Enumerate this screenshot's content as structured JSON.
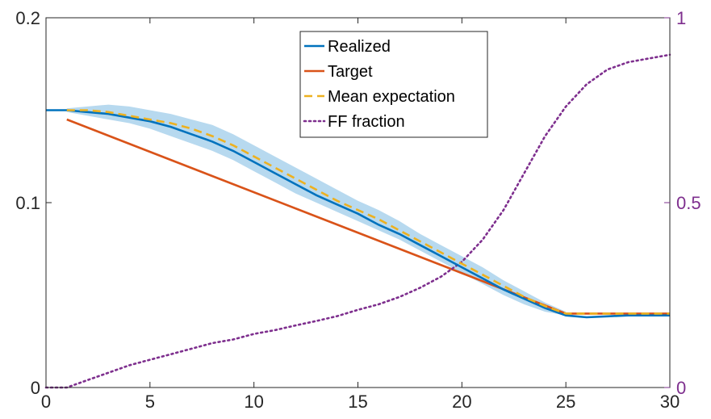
{
  "chart_data": {
    "type": "line",
    "xlim": [
      0,
      30
    ],
    "ylim_left": [
      0,
      0.2
    ],
    "ylim_right": [
      0,
      1
    ],
    "x_ticks": [
      "0",
      "5",
      "10",
      "15",
      "20",
      "25",
      "30"
    ],
    "y_left_ticks": [
      "0",
      "0.1",
      "0.2"
    ],
    "y_right_ticks": [
      "0",
      "0.5",
      "1"
    ],
    "legend_position": "top-center",
    "grid": false,
    "colors": {
      "realized": "#0072BD",
      "target": "#D95319",
      "mean_expectation": "#EDB120",
      "ff_fraction": "#7E2F8E",
      "band": "#B7D9EF"
    },
    "series": [
      {
        "name": "Realized",
        "axis": "left",
        "style": "solid",
        "x": [
          0,
          1,
          2,
          3,
          4,
          5,
          6,
          7,
          8,
          9,
          10,
          11,
          12,
          13,
          14,
          15,
          16,
          17,
          18,
          19,
          20,
          21,
          22,
          23,
          24,
          25,
          26,
          27,
          28,
          29,
          30
        ],
        "y": [
          0.15,
          0.15,
          0.149,
          0.148,
          0.146,
          0.144,
          0.141,
          0.137,
          0.133,
          0.128,
          0.122,
          0.116,
          0.11,
          0.104,
          0.099,
          0.094,
          0.088,
          0.083,
          0.077,
          0.071,
          0.065,
          0.059,
          0.053,
          0.048,
          0.043,
          0.039,
          0.038,
          0.0385,
          0.039,
          0.039,
          0.039
        ]
      },
      {
        "name": "Target",
        "axis": "left",
        "style": "solid",
        "x": [
          1,
          25,
          30
        ],
        "y": [
          0.145,
          0.04,
          0.04
        ]
      },
      {
        "name": "Mean expectation",
        "axis": "left",
        "style": "dashed",
        "x": [
          1,
          2,
          3,
          4,
          5,
          6,
          7,
          8,
          9,
          10,
          11,
          12,
          13,
          14,
          15,
          16,
          17,
          18,
          19,
          20,
          21,
          22,
          23,
          24,
          25,
          26,
          27,
          28,
          29,
          30
        ],
        "y": [
          0.15,
          0.15,
          0.149,
          0.147,
          0.145,
          0.143,
          0.14,
          0.136,
          0.131,
          0.125,
          0.119,
          0.113,
          0.107,
          0.101,
          0.096,
          0.091,
          0.085,
          0.079,
          0.073,
          0.067,
          0.061,
          0.055,
          0.049,
          0.044,
          0.04,
          0.04,
          0.04,
          0.04,
          0.04,
          0.04
        ]
      },
      {
        "name": "FF fraction",
        "axis": "right",
        "style": "dotted",
        "x": [
          0,
          1,
          2,
          3,
          4,
          5,
          6,
          7,
          8,
          9,
          10,
          11,
          12,
          13,
          14,
          15,
          16,
          17,
          18,
          19,
          20,
          21,
          22,
          23,
          24,
          25,
          26,
          27,
          28,
          29,
          30
        ],
        "y": [
          0.0,
          0.0,
          0.02,
          0.04,
          0.06,
          0.075,
          0.09,
          0.105,
          0.12,
          0.13,
          0.145,
          0.155,
          0.168,
          0.18,
          0.193,
          0.21,
          0.225,
          0.245,
          0.27,
          0.3,
          0.34,
          0.4,
          0.48,
          0.58,
          0.68,
          0.76,
          0.82,
          0.86,
          0.88,
          0.89,
          0.9
        ]
      }
    ],
    "band": {
      "axis": "left",
      "x": [
        1,
        2,
        3,
        4,
        5,
        6,
        7,
        8,
        9,
        10,
        11,
        12,
        13,
        14,
        15,
        16,
        17,
        18,
        19,
        20,
        21,
        22,
        23,
        24,
        25
      ],
      "lower": [
        0.149,
        0.147,
        0.145,
        0.143,
        0.14,
        0.136,
        0.132,
        0.128,
        0.123,
        0.117,
        0.111,
        0.105,
        0.1,
        0.095,
        0.09,
        0.085,
        0.08,
        0.074,
        0.068,
        0.062,
        0.056,
        0.05,
        0.045,
        0.041,
        0.039
      ],
      "upper": [
        0.151,
        0.152,
        0.153,
        0.152,
        0.15,
        0.148,
        0.145,
        0.142,
        0.137,
        0.131,
        0.125,
        0.119,
        0.113,
        0.107,
        0.101,
        0.096,
        0.09,
        0.083,
        0.077,
        0.071,
        0.065,
        0.058,
        0.052,
        0.046,
        0.041
      ]
    }
  }
}
